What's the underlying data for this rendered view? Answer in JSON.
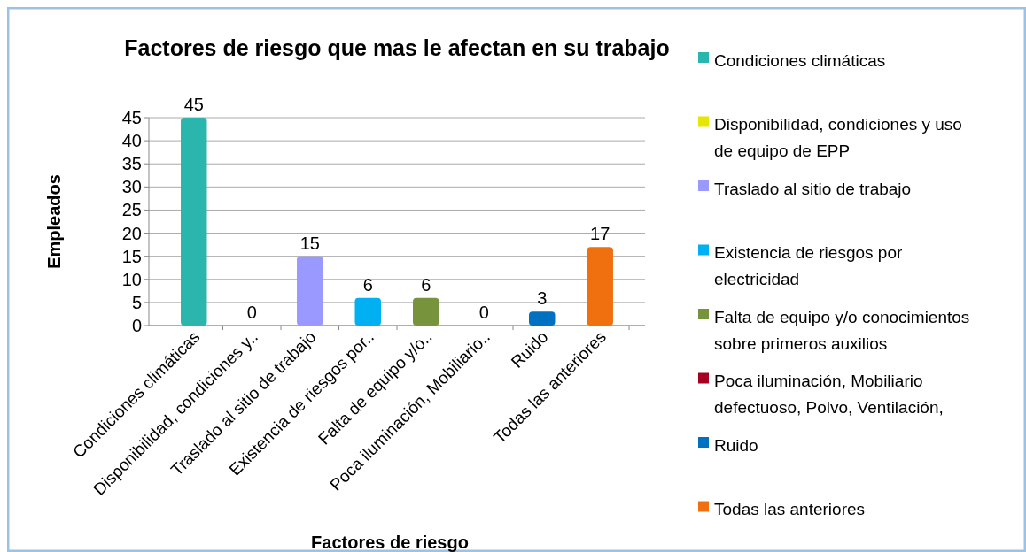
{
  "chart_data": {
    "type": "bar",
    "title": "Factores de riesgo que mas le afectan en su trabajo",
    "xlabel": "Factores de riesgo",
    "ylabel": "Empleados",
    "categories": [
      "Condiciones climáticas",
      "Disponibilidad, condiciones y..",
      "Traslado al sitio de trabajo",
      "Existencia de riesgos por..",
      "Falta de equipo y/o..",
      "Poca iluminación, Mobiliario..",
      "Ruido",
      "Todas las anteriores"
    ],
    "series": [
      {
        "name": "Condiciones climáticas",
        "color": "#2ab5ad",
        "values": [
          45,
          null,
          null,
          null,
          null,
          null,
          null,
          null
        ]
      },
      {
        "name": "Disponibilidad, condiciones y uso de equipo de EPP",
        "color": "#e6e600",
        "values": [
          null,
          0,
          null,
          null,
          null,
          null,
          null,
          null
        ]
      },
      {
        "name": "Traslado al sitio de trabajo",
        "color": "#9999ff",
        "values": [
          null,
          null,
          15,
          null,
          null,
          null,
          null,
          null
        ]
      },
      {
        "name": "Existencia de riesgos por electricidad",
        "color": "#00b0f0",
        "values": [
          null,
          null,
          null,
          6,
          null,
          null,
          null,
          null
        ]
      },
      {
        "name": "Falta de equipo y/o conocimientos sobre primeros auxilios",
        "color": "#77933c",
        "values": [
          null,
          null,
          null,
          null,
          6,
          null,
          null,
          null
        ]
      },
      {
        "name": "Poca iluminación, Mobiliario defectuoso, Polvo, Ventilación,",
        "color": "#a50021",
        "values": [
          null,
          null,
          null,
          null,
          null,
          0,
          null,
          null
        ]
      },
      {
        "name": "Ruido",
        "color": "#0070c0",
        "values": [
          null,
          null,
          null,
          null,
          null,
          null,
          3,
          null
        ]
      },
      {
        "name": "Todas las anteriores",
        "color": "#f07010",
        "values": [
          null,
          null,
          null,
          null,
          null,
          null,
          null,
          17
        ]
      }
    ],
    "ylim": [
      0,
      45
    ],
    "yticks": [
      0,
      5,
      10,
      15,
      20,
      25,
      30,
      35,
      40,
      45
    ],
    "grid": "y",
    "legend": "right",
    "data_labels": true
  }
}
